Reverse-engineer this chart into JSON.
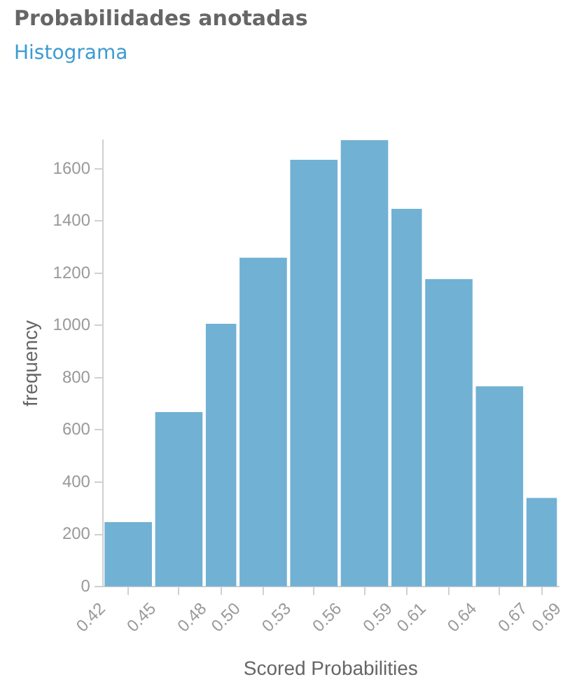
{
  "chart_data": {
    "type": "histogram",
    "title": "Probabilidades anotadas",
    "subtitle": "Histograma",
    "xlabel": "Scored Probabilities",
    "ylabel": "frequency",
    "bins": [
      0.42,
      0.45,
      0.48,
      0.5,
      0.53,
      0.56,
      0.59,
      0.61,
      0.64,
      0.67,
      0.69
    ],
    "values": [
      245,
      667,
      1005,
      1258,
      1633,
      1710,
      1445,
      1176,
      765,
      338
    ],
    "color": "#71b1d3",
    "xlim": [
      0.42,
      0.69
    ],
    "xticks": [
      0.42,
      0.45,
      0.48,
      {
        "value": 0.5,
        "label": "0.50"
      },
      0.53,
      0.56,
      0.59,
      0.61,
      0.64,
      0.67,
      0.69
    ],
    "ylim": [
      0,
      1710
    ],
    "yticks": [
      0,
      200,
      400,
      600,
      800,
      1000,
      1200,
      1400,
      1600
    ],
    "grid": false,
    "legend": false
  }
}
